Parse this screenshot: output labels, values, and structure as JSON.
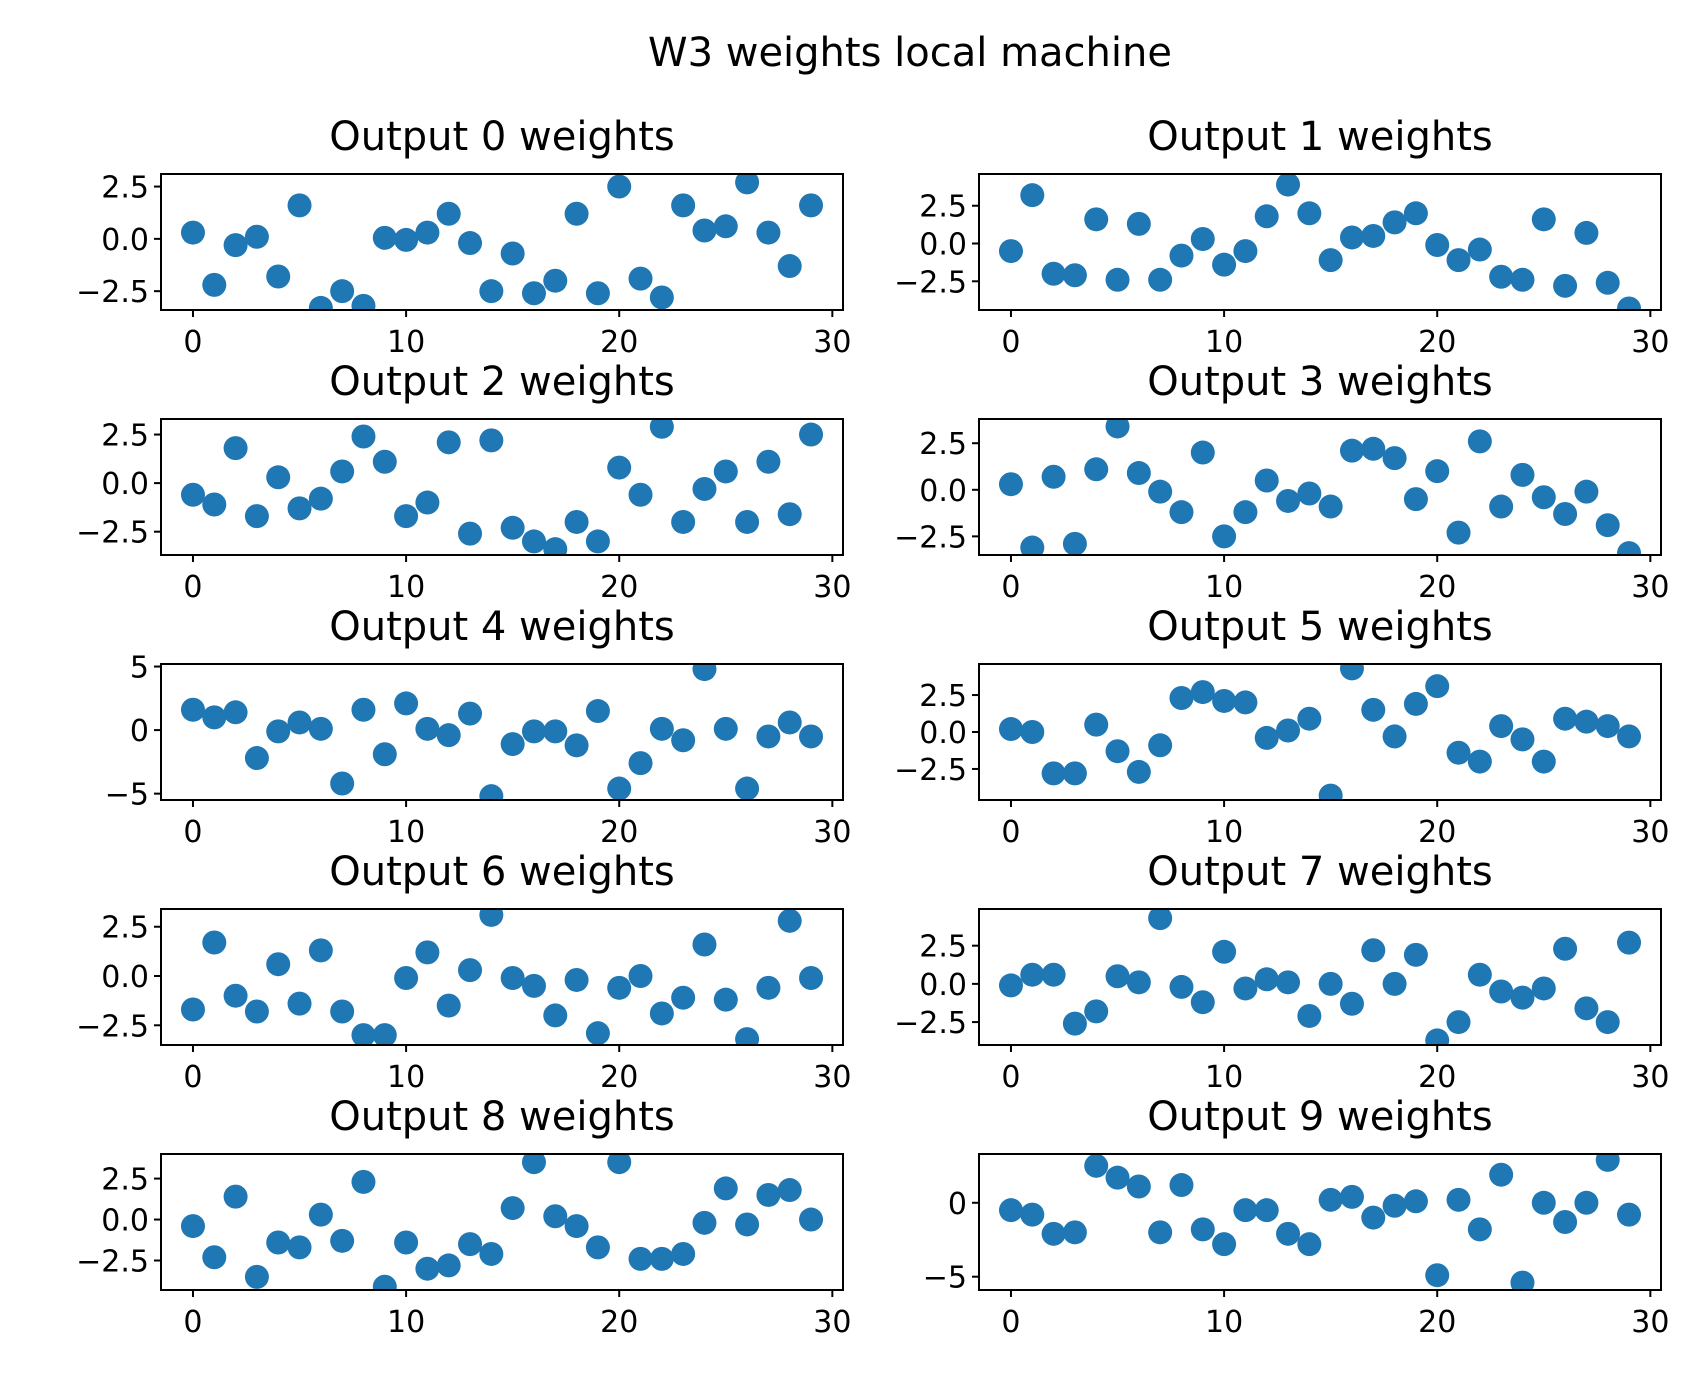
{
  "suptitle": "W3 weights local machine",
  "marker_color": "#1f77b4",
  "chart_data": [
    {
      "type": "scatter",
      "title": "Output 0 weights",
      "x_start": 0,
      "xlim": [
        -1.5,
        30.5
      ],
      "xticks": [
        0,
        10,
        20,
        30
      ],
      "ylim": [
        -3.4,
        3.1
      ],
      "yticks": [
        -2.5,
        0.0,
        2.5
      ],
      "ytick_labels": [
        "−2.5",
        "0.0",
        "2.5"
      ],
      "values": [
        0.3,
        -2.2,
        -0.3,
        0.1,
        -1.8,
        1.6,
        -3.3,
        -2.5,
        -3.2,
        0.05,
        -0.05,
        0.3,
        1.2,
        -0.2,
        -2.5,
        -0.7,
        -2.6,
        -2.0,
        1.2,
        -2.6,
        2.5,
        -1.9,
        -2.8,
        1.6,
        0.4,
        0.6,
        2.7,
        0.3,
        -1.3,
        1.6
      ]
    },
    {
      "type": "scatter",
      "title": "Output 1 weights",
      "x_start": 0,
      "xlim": [
        -1.5,
        30.5
      ],
      "xticks": [
        0,
        10,
        20,
        30
      ],
      "ylim": [
        -4.4,
        4.6
      ],
      "yticks": [
        -2.5,
        0.0,
        2.5
      ],
      "ytick_labels": [
        "−2.5",
        "0.0",
        "2.5"
      ],
      "values": [
        -0.5,
        3.2,
        -2.0,
        -2.1,
        1.6,
        -2.4,
        1.3,
        -2.4,
        -0.8,
        0.3,
        -1.4,
        -0.5,
        1.8,
        3.9,
        2.0,
        -1.1,
        0.4,
        0.5,
        1.4,
        2.0,
        -0.1,
        -1.1,
        -0.4,
        -2.2,
        -2.4,
        1.6,
        -2.8,
        0.7,
        -2.6,
        -4.3
      ]
    },
    {
      "type": "scatter",
      "title": "Output 2 weights",
      "x_start": 0,
      "xlim": [
        -1.5,
        30.5
      ],
      "xticks": [
        0,
        10,
        20,
        30
      ],
      "ylim": [
        -3.7,
        3.3
      ],
      "yticks": [
        -2.5,
        0.0,
        2.5
      ],
      "ytick_labels": [
        "−2.5",
        "0.0",
        "2.5"
      ],
      "values": [
        -0.6,
        -1.1,
        1.8,
        -1.7,
        0.3,
        -1.3,
        -0.8,
        0.6,
        2.4,
        1.1,
        -1.7,
        -1.0,
        2.1,
        -2.6,
        2.2,
        -2.3,
        -3.0,
        -3.4,
        -2.0,
        -3.0,
        0.8,
        -0.6,
        2.9,
        -2.0,
        -0.3,
        0.6,
        -2.0,
        1.1,
        -1.6,
        2.5
      ]
    },
    {
      "type": "scatter",
      "title": "Output 3 weights",
      "x_start": 0,
      "xlim": [
        -1.5,
        30.5
      ],
      "xticks": [
        0,
        10,
        20,
        30
      ],
      "ylim": [
        -3.5,
        3.8
      ],
      "yticks": [
        -2.5,
        0.0,
        2.5
      ],
      "ytick_labels": [
        "−2.5",
        "0.0",
        "2.5"
      ],
      "values": [
        0.3,
        -3.1,
        0.7,
        -2.9,
        1.1,
        3.4,
        0.9,
        -0.1,
        -1.2,
        2.0,
        -2.5,
        -1.2,
        0.5,
        -0.6,
        -0.2,
        -0.9,
        2.1,
        2.2,
        1.7,
        -0.5,
        1.0,
        -2.3,
        2.6,
        -0.9,
        0.8,
        -0.4,
        -1.3,
        -0.1,
        -1.9,
        -3.4
      ]
    },
    {
      "type": "scatter",
      "title": "Output 4 weights",
      "x_start": 0,
      "xlim": [
        -1.5,
        30.5
      ],
      "xticks": [
        0,
        10,
        20,
        30
      ],
      "ylim": [
        -5.5,
        5.2
      ],
      "yticks": [
        -5,
        0,
        5
      ],
      "ytick_labels": [
        "−5",
        "0",
        "5"
      ],
      "values": [
        1.6,
        1.0,
        1.4,
        -2.2,
        -0.1,
        0.6,
        0.1,
        -4.2,
        1.6,
        -1.9,
        2.1,
        0.1,
        -0.4,
        1.3,
        -5.2,
        -1.1,
        -0.1,
        -0.1,
        -1.2,
        1.5,
        -4.6,
        -2.6,
        0.1,
        -0.8,
        4.8,
        0.1,
        -4.6,
        -0.5,
        0.6,
        -0.5
      ]
    },
    {
      "type": "scatter",
      "title": "Output 5 weights",
      "x_start": 0,
      "xlim": [
        -1.5,
        30.5
      ],
      "xticks": [
        0,
        10,
        20,
        30
      ],
      "ylim": [
        -4.6,
        4.6
      ],
      "yticks": [
        -2.5,
        0.0,
        2.5
      ],
      "ytick_labels": [
        "−2.5",
        "0.0",
        "2.5"
      ],
      "values": [
        0.2,
        0.0,
        -2.8,
        -2.8,
        0.5,
        -1.3,
        -2.7,
        -0.9,
        2.3,
        2.7,
        2.1,
        2.0,
        -0.4,
        0.1,
        0.9,
        -4.3,
        4.3,
        1.5,
        -0.3,
        1.9,
        3.1,
        -1.4,
        -2.0,
        0.4,
        -0.5,
        -2.0,
        0.9,
        0.7,
        0.4,
        -0.3
      ]
    },
    {
      "type": "scatter",
      "title": "Output 6 weights",
      "x_start": 0,
      "xlim": [
        -1.5,
        30.5
      ],
      "xticks": [
        0,
        10,
        20,
        30
      ],
      "ylim": [
        -3.5,
        3.4
      ],
      "yticks": [
        -2.5,
        0.0,
        2.5
      ],
      "ytick_labels": [
        "−2.5",
        "0.0",
        "2.5"
      ],
      "values": [
        -1.7,
        1.7,
        -1.0,
        -1.8,
        0.6,
        -1.4,
        1.3,
        -1.8,
        -3.0,
        -3.0,
        -0.1,
        1.2,
        -1.5,
        0.3,
        3.1,
        -0.1,
        -0.5,
        -2.0,
        -0.2,
        -2.9,
        -0.6,
        0.0,
        -1.9,
        -1.1,
        1.6,
        -1.2,
        -3.2,
        -0.6,
        2.8,
        -0.1
      ]
    },
    {
      "type": "scatter",
      "title": "Output 7 weights",
      "x_start": 0,
      "xlim": [
        -1.5,
        30.5
      ],
      "xticks": [
        0,
        10,
        20,
        30
      ],
      "ylim": [
        -4.0,
        4.9
      ],
      "yticks": [
        -2.5,
        0.0,
        2.5
      ],
      "ytick_labels": [
        "−2.5",
        "0.0",
        "2.5"
      ],
      "values": [
        -0.1,
        0.6,
        0.6,
        -2.6,
        -1.8,
        0.5,
        0.1,
        4.3,
        -0.2,
        -1.2,
        2.1,
        -0.3,
        0.3,
        0.1,
        -2.1,
        0.0,
        -1.3,
        2.2,
        0.0,
        1.9,
        -3.7,
        -2.5,
        0.6,
        -0.5,
        -0.9,
        -0.3,
        2.3,
        -1.6,
        -2.5,
        2.7
      ]
    },
    {
      "type": "scatter",
      "title": "Output 8 weights",
      "x_start": 0,
      "xlim": [
        -1.5,
        30.5
      ],
      "xticks": [
        0,
        10,
        20,
        30
      ],
      "ylim": [
        -4.3,
        4.0
      ],
      "yticks": [
        -2.5,
        0.0,
        2.5
      ],
      "ytick_labels": [
        "−2.5",
        "0.0",
        "2.5"
      ],
      "values": [
        -0.4,
        -2.3,
        1.4,
        -3.5,
        -1.4,
        -1.7,
        0.3,
        -1.3,
        2.3,
        -4.1,
        -1.4,
        -3.0,
        -2.8,
        -1.5,
        -2.1,
        0.7,
        3.5,
        0.2,
        -0.4,
        -1.7,
        3.5,
        -2.4,
        -2.4,
        -2.1,
        -0.2,
        1.9,
        -0.3,
        1.5,
        1.8,
        0.0
      ]
    },
    {
      "type": "scatter",
      "title": "Output 9 weights",
      "x_start": 0,
      "xlim": [
        -1.5,
        30.5
      ],
      "xticks": [
        0,
        10,
        20,
        30
      ],
      "ylim": [
        -5.9,
        3.3
      ],
      "yticks": [
        -5,
        0
      ],
      "ytick_labels": [
        "−5",
        "0"
      ],
      "values": [
        -0.5,
        -0.8,
        -2.1,
        -2.0,
        2.5,
        1.7,
        1.1,
        -2.0,
        1.2,
        -1.8,
        -2.8,
        -0.5,
        -0.5,
        -2.1,
        -2.8,
        0.2,
        0.4,
        -1.0,
        -0.2,
        0.1,
        -4.9,
        0.2,
        -1.8,
        1.9,
        -5.4,
        0.0,
        -1.3,
        0.0,
        2.9,
        -0.8
      ]
    }
  ]
}
